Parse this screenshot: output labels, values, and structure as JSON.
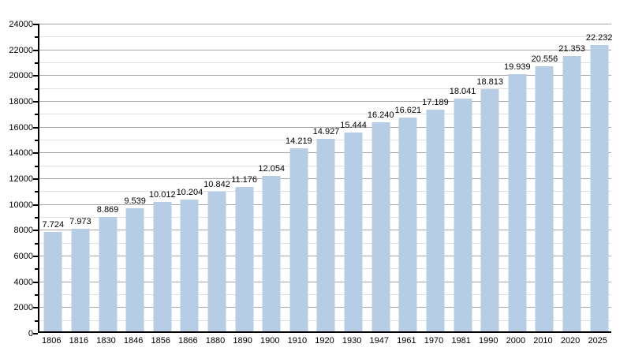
{
  "chart_data": {
    "type": "bar",
    "title": "",
    "xlabel": "",
    "ylabel": "",
    "categories": [
      "1806",
      "1816",
      "1830",
      "1846",
      "1856",
      "1866",
      "1880",
      "1890",
      "1900",
      "1910",
      "1920",
      "1930",
      "1947",
      "1961",
      "1970",
      "1981",
      "1990",
      "2000",
      "2010",
      "2020",
      "2025"
    ],
    "values": [
      7724,
      7973,
      8869,
      9539,
      10012,
      10204,
      10842,
      11176,
      12054,
      14219,
      14927,
      15444,
      16240,
      16621,
      17189,
      18041,
      18813,
      19939,
      20556,
      21353,
      22232
    ],
    "value_labels": [
      "7.724",
      "7.973",
      "8.869",
      "9.539",
      "10.012",
      "10.204",
      "10.842",
      "11.176",
      "12.054",
      "14.219",
      "14.927",
      "15.444",
      "16.240",
      "16.621",
      "17.189",
      "18.041",
      "18.813",
      "19.939",
      "20.556",
      "21.353",
      "22.232"
    ],
    "ylim": [
      0,
      24000
    ],
    "ytick_step": 2000,
    "yminor_step": 1000,
    "ytick_labels": [
      "0",
      "2000",
      "4000",
      "6000",
      "8000",
      "10000",
      "12000",
      "14000",
      "16000",
      "18000",
      "20000",
      "22000",
      "24000"
    ],
    "grid": true,
    "legend_position": "none",
    "colors": {
      "bar_fill": "#B7CDE6",
      "major_grid": "#A6A6A6",
      "minor_grid": "#E0E0E0",
      "axis": "#000000",
      "label_text": "#000000",
      "background": "#FFFFFF"
    }
  }
}
